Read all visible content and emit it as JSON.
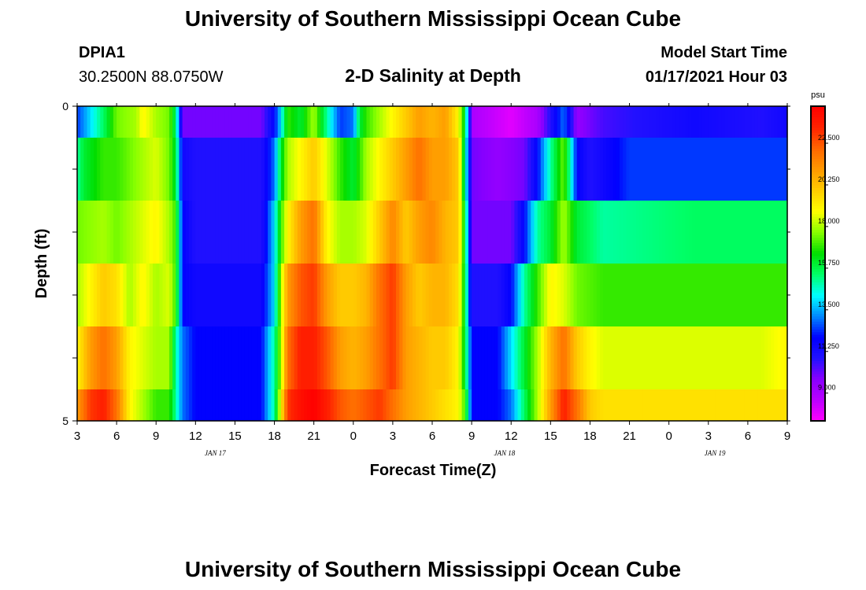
{
  "page": {
    "title": "University of Southern Mississippi Ocean Cube",
    "footer_title": "University of Southern Mississippi Ocean Cube",
    "station_id": "DPIA1",
    "station_coords": "30.2500N 88.0750W",
    "model_start_label": "Model Start Time",
    "model_start_value": "01/17/2021 Hour 03"
  },
  "chart_data": {
    "type": "heatmap",
    "title": "2-D Salinity at Depth",
    "xlabel": "Forecast Time(Z)",
    "ylabel": "Depth (ft)",
    "x_tick_labels": [
      "3",
      "6",
      "9",
      "12",
      "15",
      "18",
      "21",
      "0",
      "3",
      "6",
      "9",
      "12",
      "15",
      "18",
      "21",
      "0",
      "3",
      "6",
      "9"
    ],
    "x_date_labels": [
      {
        "label": "JAN 17",
        "hour_index": 10.5
      },
      {
        "label": "JAN 18",
        "hour_index": 32.5
      },
      {
        "label": "JAN 19",
        "hour_index": 48.5
      }
    ],
    "y_tick_labels": [
      "0",
      "5"
    ],
    "ylim": [
      0,
      5
    ],
    "x_hours": [
      3,
      57
    ],
    "colorbar": {
      "unit": "psu",
      "min": 7.5,
      "max": 24.5,
      "tick_values": [
        9.0,
        11.25,
        13.5,
        15.75,
        18.0,
        20.25,
        22.5
      ],
      "tick_labels": [
        "9.000",
        "11.250",
        "13.500",
        "15.750",
        "18.000",
        "20.250",
        "22.500"
      ],
      "colors": [
        "#ff00ff",
        "#bb00ff",
        "#8800ff",
        "#2211ff",
        "#0000ff",
        "#0088ff",
        "#00ffff",
        "#00ff66",
        "#00dd00",
        "#88ff00",
        "#ffff00",
        "#ffcc00",
        "#ff9900",
        "#ff6600",
        "#ff2200",
        "#ff0000"
      ]
    },
    "layers": [
      {
        "depth_range": [
          0,
          0.5
        ],
        "keys": [
          [
            3,
            12.5
          ],
          [
            4,
            14
          ],
          [
            5,
            15.5
          ],
          [
            6,
            17.5
          ],
          [
            7.5,
            18
          ],
          [
            8,
            19
          ],
          [
            9,
            18
          ],
          [
            10,
            17.5
          ],
          [
            10.5,
            15.5
          ],
          [
            11,
            10
          ],
          [
            12,
            10
          ],
          [
            17,
            10
          ],
          [
            18,
            12
          ],
          [
            18.5,
            14
          ],
          [
            19,
            17
          ],
          [
            20,
            16
          ],
          [
            21,
            18
          ],
          [
            22,
            15
          ],
          [
            23,
            12.5
          ],
          [
            24,
            13
          ],
          [
            24.5,
            16
          ],
          [
            25,
            17
          ],
          [
            26,
            18
          ],
          [
            27,
            19
          ],
          [
            28,
            20
          ],
          [
            29,
            21
          ],
          [
            30,
            20.5
          ],
          [
            31,
            21
          ],
          [
            32,
            19
          ],
          [
            32.5,
            16
          ],
          [
            33,
            9
          ],
          [
            36,
            8
          ],
          [
            38,
            9
          ],
          [
            39,
            11
          ],
          [
            40,
            13
          ],
          [
            41,
            9.5
          ],
          [
            43,
            10.5
          ],
          [
            46,
            11
          ],
          [
            50,
            11.5
          ],
          [
            55,
            11
          ],
          [
            57,
            11.5
          ]
        ]
      },
      {
        "depth_range": [
          0.5,
          1.5
        ],
        "keys": [
          [
            3,
            15
          ],
          [
            3.5,
            16
          ],
          [
            5,
            17
          ],
          [
            6,
            17
          ],
          [
            7,
            17.5
          ],
          [
            8,
            18
          ],
          [
            9,
            18.5
          ],
          [
            10,
            17.5
          ],
          [
            10.5,
            16
          ],
          [
            11,
            11.5
          ],
          [
            12,
            11
          ],
          [
            17,
            11
          ],
          [
            18,
            13
          ],
          [
            18.5,
            16
          ],
          [
            19,
            18
          ],
          [
            20,
            19
          ],
          [
            21,
            20
          ],
          [
            22,
            18.5
          ],
          [
            23,
            17
          ],
          [
            24,
            16
          ],
          [
            25,
            18
          ],
          [
            26,
            19
          ],
          [
            27,
            20
          ],
          [
            28,
            21
          ],
          [
            29,
            22
          ],
          [
            30,
            21
          ],
          [
            31,
            21
          ],
          [
            32,
            20
          ],
          [
            32.5,
            15
          ],
          [
            33,
            10
          ],
          [
            35,
            9.5
          ],
          [
            37,
            10
          ],
          [
            38,
            12
          ],
          [
            39,
            15
          ],
          [
            40,
            17.5
          ],
          [
            41,
            12
          ],
          [
            42,
            11
          ],
          [
            45,
            12.5
          ],
          [
            50,
            12.5
          ],
          [
            55,
            12.5
          ],
          [
            57,
            12.5
          ]
        ]
      },
      {
        "depth_range": [
          1.5,
          2.5
        ],
        "keys": [
          [
            3,
            17.5
          ],
          [
            5,
            18
          ],
          [
            6,
            17.5
          ],
          [
            7,
            18
          ],
          [
            8,
            18.5
          ],
          [
            9,
            19
          ],
          [
            10,
            18
          ],
          [
            10.5,
            17
          ],
          [
            11,
            12
          ],
          [
            12,
            11
          ],
          [
            17,
            11
          ],
          [
            18,
            14
          ],
          [
            18.5,
            17
          ],
          [
            19,
            19
          ],
          [
            20,
            21
          ],
          [
            21,
            22
          ],
          [
            22,
            19
          ],
          [
            23,
            18
          ],
          [
            24,
            18
          ],
          [
            25,
            18.5
          ],
          [
            26,
            20
          ],
          [
            27,
            21.5
          ],
          [
            28,
            20
          ],
          [
            29,
            21
          ],
          [
            30,
            21.5
          ],
          [
            31,
            20.5
          ],
          [
            32,
            20
          ],
          [
            32.5,
            16
          ],
          [
            33,
            10
          ],
          [
            36,
            10
          ],
          [
            37,
            12
          ],
          [
            38,
            15
          ],
          [
            39,
            16
          ],
          [
            40,
            18
          ],
          [
            41,
            16
          ],
          [
            43,
            15
          ],
          [
            50,
            15.5
          ],
          [
            55,
            15.5
          ],
          [
            57,
            15.5
          ]
        ]
      },
      {
        "depth_range": [
          2.5,
          3.5
        ],
        "keys": [
          [
            3,
            18
          ],
          [
            4,
            19
          ],
          [
            5,
            20
          ],
          [
            6,
            19.5
          ],
          [
            7,
            18
          ],
          [
            8,
            19
          ],
          [
            9,
            18
          ],
          [
            10,
            18.5
          ],
          [
            10.5,
            17
          ],
          [
            11,
            12
          ],
          [
            12,
            11.5
          ],
          [
            17,
            11.5
          ],
          [
            18,
            14
          ],
          [
            18.5,
            18
          ],
          [
            19,
            21
          ],
          [
            20,
            22.5
          ],
          [
            21,
            23
          ],
          [
            22,
            21
          ],
          [
            23,
            20
          ],
          [
            24,
            20
          ],
          [
            25,
            20.5
          ],
          [
            26,
            22
          ],
          [
            27,
            23
          ],
          [
            28,
            21
          ],
          [
            29,
            20
          ],
          [
            30,
            20.5
          ],
          [
            31,
            20.5
          ],
          [
            32,
            19.5
          ],
          [
            32.5,
            16
          ],
          [
            33,
            11
          ],
          [
            35,
            11
          ],
          [
            36,
            12
          ],
          [
            37,
            15
          ],
          [
            38,
            17
          ],
          [
            39,
            19
          ],
          [
            40,
            18.5
          ],
          [
            41,
            17.5
          ],
          [
            43,
            17
          ],
          [
            50,
            17
          ],
          [
            55,
            17
          ],
          [
            57,
            17
          ]
        ]
      },
      {
        "depth_range": [
          3.5,
          4.5
        ],
        "keys": [
          [
            3,
            19
          ],
          [
            4,
            21
          ],
          [
            5,
            22
          ],
          [
            6,
            21
          ],
          [
            7,
            19
          ],
          [
            8,
            18.5
          ],
          [
            9,
            18
          ],
          [
            10,
            18
          ],
          [
            10.5,
            15
          ],
          [
            11,
            13
          ],
          [
            12,
            12
          ],
          [
            17,
            12
          ],
          [
            18,
            15
          ],
          [
            18.5,
            18
          ],
          [
            19,
            22
          ],
          [
            20,
            23.5
          ],
          [
            21,
            23.5
          ],
          [
            22,
            22.5
          ],
          [
            23,
            21
          ],
          [
            24,
            20.5
          ],
          [
            25,
            21
          ],
          [
            26,
            22
          ],
          [
            27,
            23
          ],
          [
            28,
            21
          ],
          [
            29,
            20.5
          ],
          [
            30,
            20
          ],
          [
            31,
            20
          ],
          [
            32,
            19
          ],
          [
            32.5,
            16
          ],
          [
            33,
            12
          ],
          [
            35,
            12
          ],
          [
            36,
            14
          ],
          [
            37,
            16
          ],
          [
            38,
            18
          ],
          [
            39,
            20.5
          ],
          [
            40,
            22
          ],
          [
            41,
            20
          ],
          [
            42,
            19
          ],
          [
            43,
            18.5
          ],
          [
            50,
            18.5
          ],
          [
            55,
            18.5
          ],
          [
            57,
            19
          ]
        ]
      },
      {
        "depth_range": [
          4.5,
          5
        ],
        "keys": [
          [
            3,
            21
          ],
          [
            4,
            23
          ],
          [
            5,
            23.5
          ],
          [
            6,
            22
          ],
          [
            7,
            19
          ],
          [
            8,
            18
          ],
          [
            9,
            17
          ],
          [
            10,
            17
          ],
          [
            10.5,
            15
          ],
          [
            11,
            13
          ],
          [
            12,
            12
          ],
          [
            17,
            12
          ],
          [
            18,
            15
          ],
          [
            18.5,
            19
          ],
          [
            19,
            23
          ],
          [
            20,
            24
          ],
          [
            21,
            24.5
          ],
          [
            22,
            23.5
          ],
          [
            23,
            22.5
          ],
          [
            24,
            22
          ],
          [
            25,
            22.5
          ],
          [
            26,
            23
          ],
          [
            27,
            22
          ],
          [
            28,
            21
          ],
          [
            29,
            20.5
          ],
          [
            30,
            20
          ],
          [
            31,
            19.5
          ],
          [
            32,
            19
          ],
          [
            32.5,
            17
          ],
          [
            33,
            12
          ],
          [
            35,
            12
          ],
          [
            36,
            13
          ],
          [
            37,
            15.5
          ],
          [
            38,
            18
          ],
          [
            39,
            21
          ],
          [
            40,
            23.5
          ],
          [
            41,
            22
          ],
          [
            42,
            20
          ],
          [
            43,
            19.5
          ],
          [
            50,
            19.5
          ],
          [
            55,
            19.5
          ],
          [
            57,
            19.5
          ]
        ]
      }
    ]
  }
}
